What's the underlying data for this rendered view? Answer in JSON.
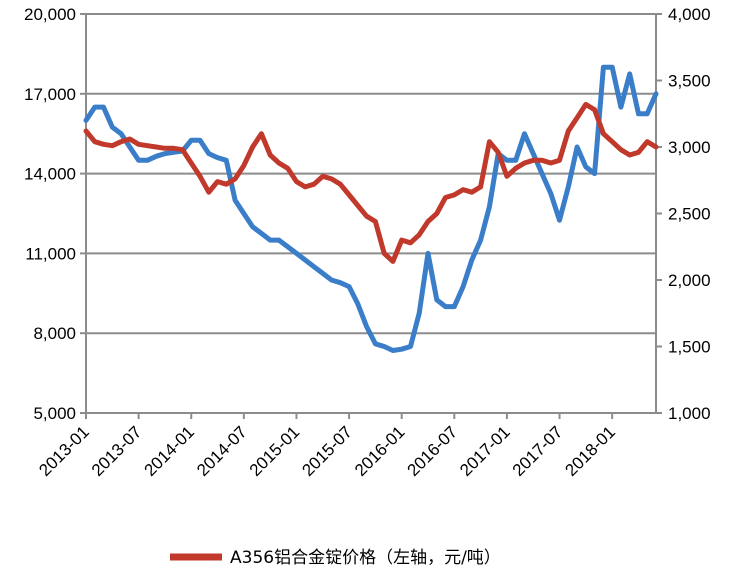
{
  "chart_data": {
    "type": "line",
    "left_axis": {
      "min": 5000,
      "max": 20000,
      "ticks": [
        5000,
        8000,
        11000,
        14000,
        17000,
        20000
      ],
      "tick_labels": [
        "5,000",
        "8,000",
        "11,000",
        "14,000",
        "17,000",
        "20,000"
      ]
    },
    "right_axis": {
      "min": 1000,
      "max": 4000,
      "ticks": [
        1000,
        1500,
        2000,
        2500,
        3000,
        3500,
        4000
      ],
      "tick_labels": [
        "1,000",
        "1,500",
        "2,000",
        "2,500",
        "3,000",
        "3,500",
        "4,000"
      ]
    },
    "x_axis": {
      "start": "2013-01",
      "end": "2018-06",
      "tick_labels": [
        "2013-01",
        "2013-07",
        "2014-01",
        "2014-07",
        "2015-01",
        "2015-07",
        "2016-01",
        "2016-07",
        "2017-01",
        "2017-07",
        "2018-01"
      ]
    },
    "grid": "horizontal",
    "legend_position": "bottom",
    "series": [
      {
        "name": "A356铝合金锭价格（左轴，元/吨）",
        "axis": "left",
        "color": "#C0392B",
        "points": [
          [
            "2013-01",
            15600
          ],
          [
            "2013-02",
            15200
          ],
          [
            "2013-03",
            15100
          ],
          [
            "2013-04",
            15050
          ],
          [
            "2013-05",
            15200
          ],
          [
            "2013-06",
            15300
          ],
          [
            "2013-07",
            15100
          ],
          [
            "2013-08",
            15050
          ],
          [
            "2013-09",
            15000
          ],
          [
            "2013-10",
            14950
          ],
          [
            "2013-11",
            14950
          ],
          [
            "2013-12",
            14900
          ],
          [
            "2014-01",
            14400
          ],
          [
            "2014-02",
            13900
          ],
          [
            "2014-03",
            13300
          ],
          [
            "2014-04",
            13700
          ],
          [
            "2014-05",
            13600
          ],
          [
            "2014-06",
            13800
          ],
          [
            "2014-07",
            14300
          ],
          [
            "2014-08",
            15000
          ],
          [
            "2014-09",
            15500
          ],
          [
            "2014-10",
            14700
          ],
          [
            "2014-11",
            14400
          ],
          [
            "2014-12",
            14200
          ],
          [
            "2015-01",
            13700
          ],
          [
            "2015-02",
            13500
          ],
          [
            "2015-03",
            13600
          ],
          [
            "2015-04",
            13900
          ],
          [
            "2015-05",
            13800
          ],
          [
            "2015-06",
            13600
          ],
          [
            "2015-07",
            13200
          ],
          [
            "2015-08",
            12800
          ],
          [
            "2015-09",
            12400
          ],
          [
            "2015-10",
            12200
          ],
          [
            "2015-11",
            11000
          ],
          [
            "2015-12",
            10700
          ],
          [
            "2016-01",
            11500
          ],
          [
            "2016-02",
            11400
          ],
          [
            "2016-03",
            11700
          ],
          [
            "2016-04",
            12200
          ],
          [
            "2016-05",
            12500
          ],
          [
            "2016-06",
            13100
          ],
          [
            "2016-07",
            13200
          ],
          [
            "2016-08",
            13400
          ],
          [
            "2016-09",
            13300
          ],
          [
            "2016-10",
            13500
          ],
          [
            "2016-11",
            15200
          ],
          [
            "2016-12",
            14800
          ],
          [
            "2017-01",
            13900
          ],
          [
            "2017-02",
            14200
          ],
          [
            "2017-03",
            14400
          ],
          [
            "2017-04",
            14500
          ],
          [
            "2017-05",
            14500
          ],
          [
            "2017-06",
            14400
          ],
          [
            "2017-07",
            14500
          ],
          [
            "2017-08",
            15600
          ],
          [
            "2017-09",
            16100
          ],
          [
            "2017-10",
            16600
          ],
          [
            "2017-11",
            16400
          ],
          [
            "2017-12",
            15500
          ],
          [
            "2018-01",
            15200
          ],
          [
            "2018-02",
            14900
          ],
          [
            "2018-03",
            14700
          ],
          [
            "2018-04",
            14800
          ],
          [
            "2018-05",
            15200
          ],
          [
            "2018-06",
            15000
          ]
        ]
      },
      {
        "name": "",
        "axis": "right",
        "color": "#3A7DC9",
        "points": [
          [
            "2013-01",
            3200
          ],
          [
            "2013-02",
            3300
          ],
          [
            "2013-03",
            3300
          ],
          [
            "2013-04",
            3150
          ],
          [
            "2013-05",
            3100
          ],
          [
            "2013-06",
            3000
          ],
          [
            "2013-07",
            2900
          ],
          [
            "2013-08",
            2900
          ],
          [
            "2013-09",
            2930
          ],
          [
            "2013-10",
            2950
          ],
          [
            "2013-11",
            2960
          ],
          [
            "2013-12",
            2970
          ],
          [
            "2014-01",
            3050
          ],
          [
            "2014-02",
            3050
          ],
          [
            "2014-03",
            2950
          ],
          [
            "2014-04",
            2920
          ],
          [
            "2014-05",
            2900
          ],
          [
            "2014-06",
            2600
          ],
          [
            "2014-07",
            2500
          ],
          [
            "2014-08",
            2400
          ],
          [
            "2014-09",
            2350
          ],
          [
            "2014-10",
            2300
          ],
          [
            "2014-11",
            2300
          ],
          [
            "2014-12",
            2250
          ],
          [
            "2015-01",
            2200
          ],
          [
            "2015-02",
            2150
          ],
          [
            "2015-03",
            2100
          ],
          [
            "2015-04",
            2050
          ],
          [
            "2015-05",
            2000
          ],
          [
            "2015-06",
            1980
          ],
          [
            "2015-07",
            1950
          ],
          [
            "2015-08",
            1820
          ],
          [
            "2015-09",
            1650
          ],
          [
            "2015-10",
            1520
          ],
          [
            "2015-11",
            1500
          ],
          [
            "2015-12",
            1470
          ],
          [
            "2016-01",
            1480
          ],
          [
            "2016-02",
            1500
          ],
          [
            "2016-03",
            1750
          ],
          [
            "2016-04",
            2200
          ],
          [
            "2016-05",
            1850
          ],
          [
            "2016-06",
            1800
          ],
          [
            "2016-07",
            1800
          ],
          [
            "2016-08",
            1950
          ],
          [
            "2016-09",
            2150
          ],
          [
            "2016-10",
            2300
          ],
          [
            "2016-11",
            2550
          ],
          [
            "2016-12",
            2950
          ],
          [
            "2017-01",
            2900
          ],
          [
            "2017-02",
            2900
          ],
          [
            "2017-03",
            3100
          ],
          [
            "2017-04",
            2950
          ],
          [
            "2017-05",
            2800
          ],
          [
            "2017-06",
            2650
          ],
          [
            "2017-07",
            2450
          ],
          [
            "2017-08",
            2700
          ],
          [
            "2017-09",
            3000
          ],
          [
            "2017-10",
            2850
          ],
          [
            "2017-11",
            2800
          ],
          [
            "2017-12",
            3600
          ],
          [
            "2018-01",
            3600
          ],
          [
            "2018-02",
            3300
          ],
          [
            "2018-03",
            3550
          ],
          [
            "2018-04",
            3250
          ],
          [
            "2018-05",
            3250
          ],
          [
            "2018-06",
            3400
          ]
        ]
      }
    ]
  }
}
